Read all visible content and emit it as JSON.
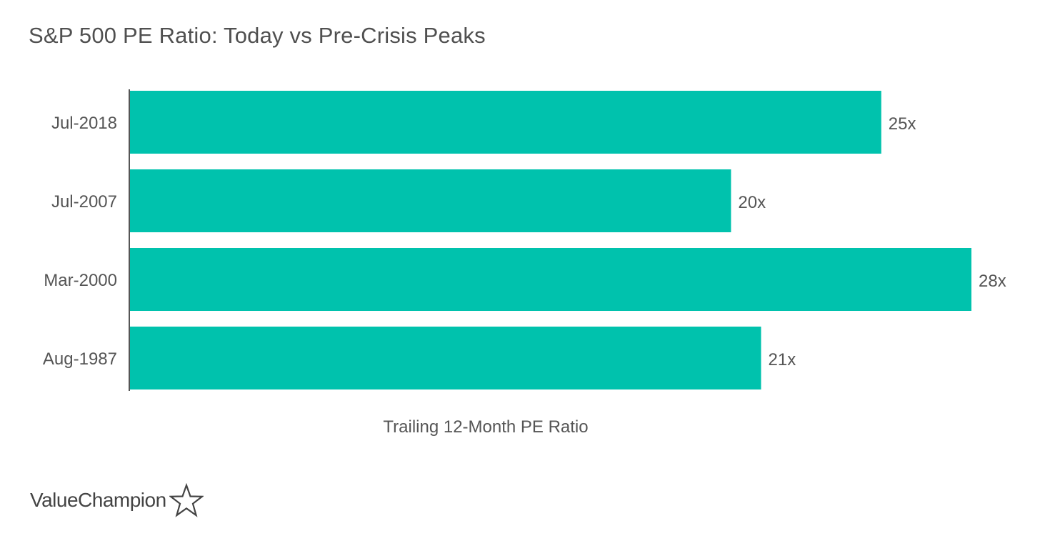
{
  "title": "S&P 500 PE Ratio: Today vs Pre-Crisis Peaks",
  "brand": {
    "name": "ValueChampion",
    "icon": "star-outline-icon"
  },
  "colors": {
    "bar": "#00c2ad",
    "axis": "#555555",
    "text": "#555555"
  },
  "chart_data": {
    "type": "bar",
    "orientation": "horizontal",
    "categories": [
      "Jul-2018",
      "Jul-2007",
      "Mar-2000",
      "Aug-1987"
    ],
    "values": [
      25,
      20,
      28,
      21
    ],
    "data_labels": [
      "25x",
      "20x",
      "28x",
      "21x"
    ],
    "title": "S&P 500 PE Ratio: Today vs Pre-Crisis Peaks",
    "xlabel": "Trailing 12-Month PE Ratio",
    "ylabel": "",
    "xlim": [
      0,
      28
    ],
    "grid": false,
    "legend": "none"
  }
}
